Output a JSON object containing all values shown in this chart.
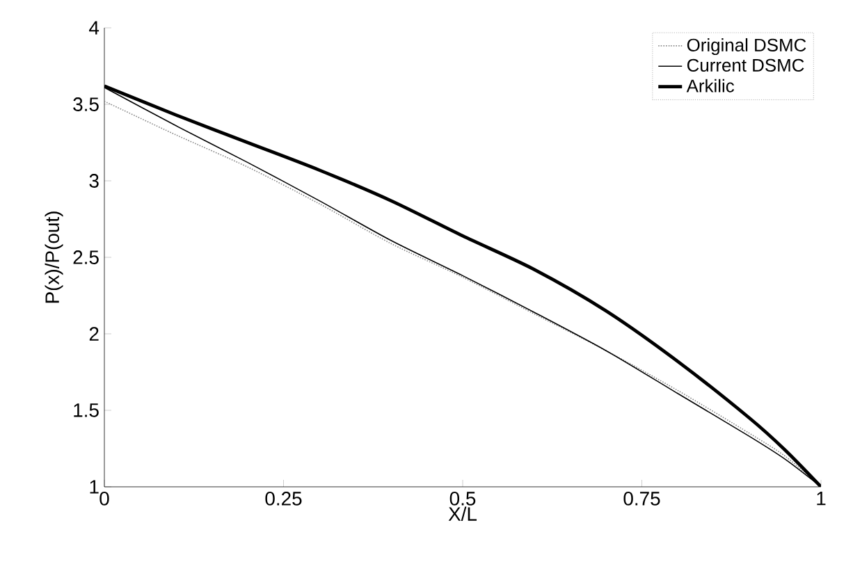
{
  "chart_data": {
    "type": "line",
    "xlabel": "X/L",
    "ylabel": "P(x)/P(out)",
    "xlim": [
      0,
      1
    ],
    "ylim": [
      1,
      4
    ],
    "xticks": [
      0,
      0.25,
      0.5,
      0.75,
      1
    ],
    "yticks": [
      1,
      1.5,
      2,
      2.5,
      3,
      3.5,
      4
    ],
    "x": [
      0,
      0.1,
      0.2,
      0.3,
      0.4,
      0.5,
      0.6,
      0.7,
      0.8,
      0.9,
      0.95,
      1
    ],
    "legend": "top right",
    "grid": false,
    "marker": "none",
    "series": [
      {
        "name": "Original DSMC",
        "color": "#888888",
        "line_style": "dotted",
        "values": [
          3.52,
          3.3,
          3.09,
          2.85,
          2.59,
          2.37,
          2.13,
          1.89,
          1.63,
          1.35,
          1.2,
          1.0
        ]
      },
      {
        "name": "Current DSMC",
        "color": "#000000",
        "line_style": "solid",
        "values": [
          3.61,
          3.36,
          3.12,
          2.87,
          2.61,
          2.38,
          2.14,
          1.89,
          1.61,
          1.33,
          1.18,
          1.0
        ]
      },
      {
        "name": "Arkilic",
        "color": "#000000",
        "line_style": "solid",
        "values": [
          3.62,
          3.43,
          3.25,
          3.07,
          2.87,
          2.64,
          2.42,
          2.15,
          1.82,
          1.45,
          1.24,
          1.0
        ]
      }
    ]
  }
}
